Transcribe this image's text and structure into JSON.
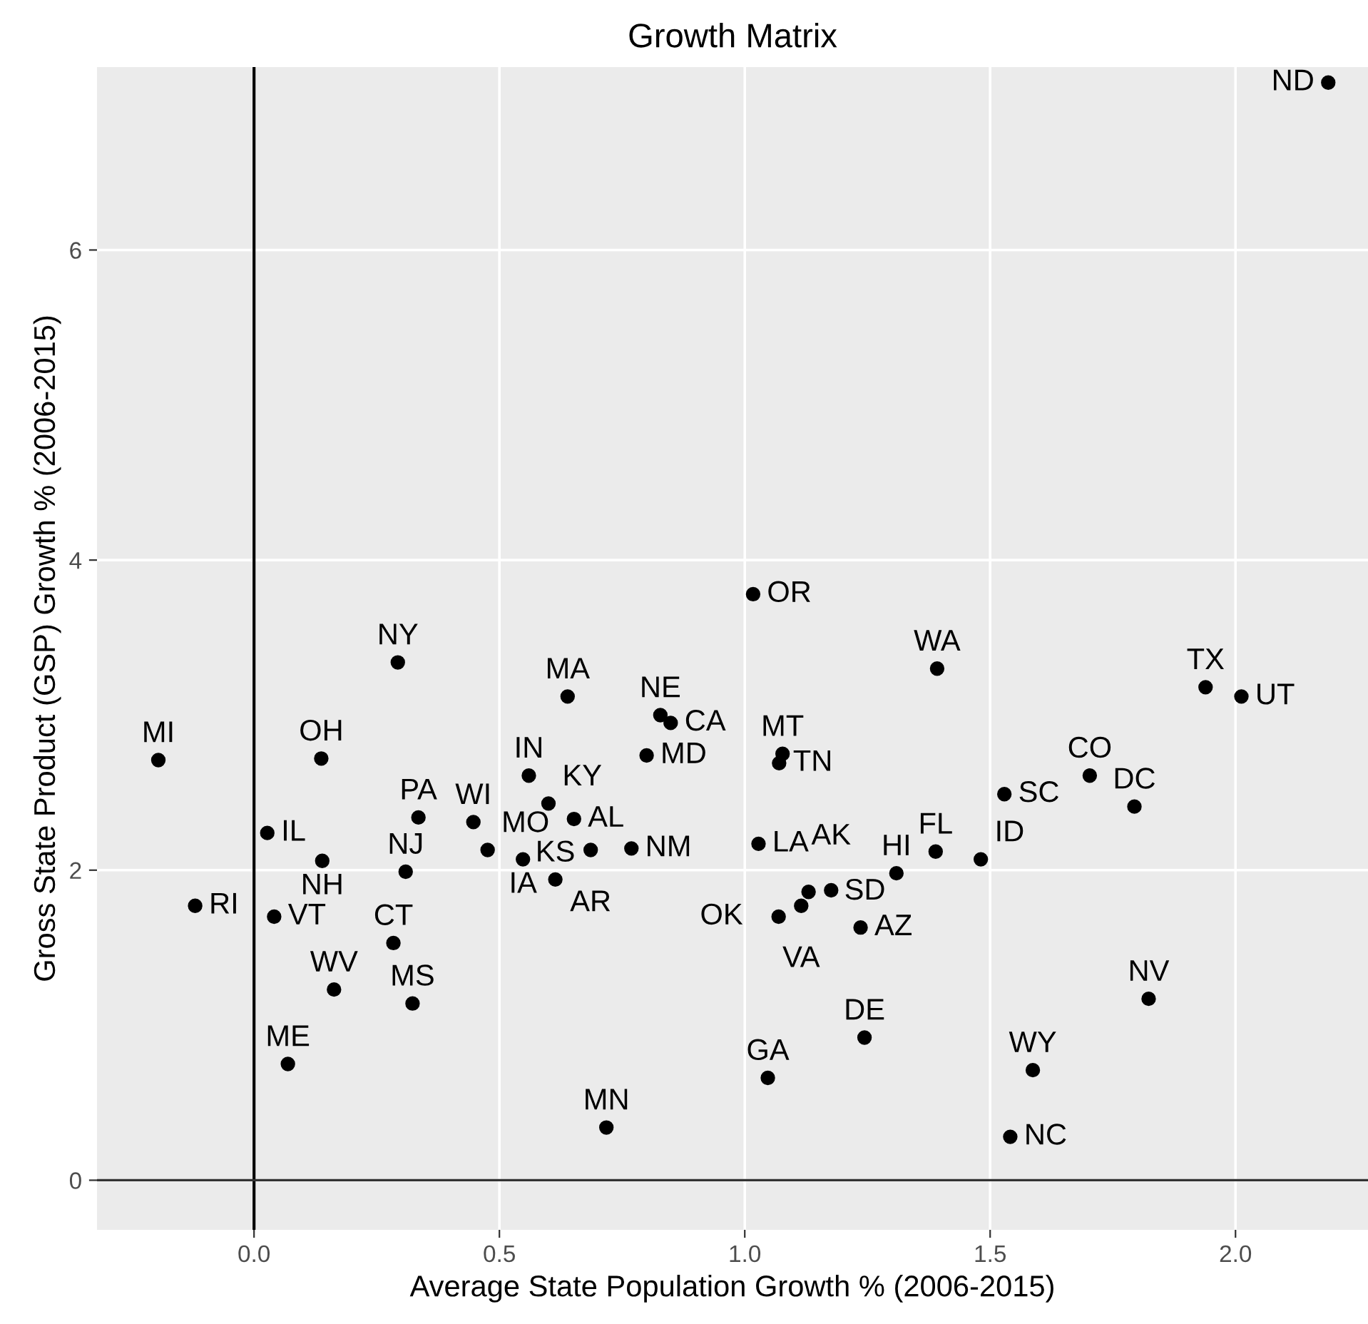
{
  "chart_data": {
    "type": "scatter",
    "title": "Growth Matrix",
    "xlabel": "Average State Population Growth % (2006-2015)",
    "ylabel": "Gross State Product (GSP) Growth % (2006-2015)",
    "xlim": [
      -0.32,
      2.27
    ],
    "ylim": [
      -0.32,
      7.18
    ],
    "xticks": [
      {
        "value": 0,
        "label": "0.0"
      },
      0.5,
      {
        "value": 1,
        "label": "1.0"
      },
      1.5,
      {
        "value": 2,
        "label": "2.0"
      }
    ],
    "yticks": [
      0,
      2,
      4,
      6
    ],
    "grid": true,
    "marker": "circle",
    "ref_lines": [
      {
        "axis": "x",
        "value": 0,
        "color": "#000000"
      },
      {
        "axis": "y",
        "value": 0,
        "color": "#333333"
      }
    ],
    "series": [
      {
        "color": "#000000",
        "x": [
          -0.195,
          -0.12,
          0.027,
          0.041,
          0.069,
          0.137,
          0.139,
          0.163,
          0.335,
          0.309,
          0.284,
          0.323,
          0.293,
          0.639,
          0.828,
          0.849,
          0.8,
          1.077,
          1.07,
          0.56,
          0.6,
          0.652,
          0.447,
          0.476,
          0.548,
          0.614,
          0.686,
          0.769,
          1.028,
          1.13,
          1.115,
          1.176,
          1.069,
          1.236,
          1.309,
          1.389,
          1.481,
          1.017,
          1.392,
          1.529,
          1.703,
          1.794,
          1.939,
          2.012,
          2.189,
          1.823,
          1.587,
          1.541,
          1.244,
          1.047,
          0.718
        ],
        "values": [
          2.71,
          1.77,
          2.24,
          1.7,
          0.75,
          2.72,
          2.06,
          1.23,
          2.34,
          1.99,
          1.53,
          1.14,
          3.34,
          3.12,
          3.0,
          2.95,
          2.74,
          2.75,
          2.69,
          2.61,
          2.43,
          2.33,
          2.31,
          2.13,
          2.07,
          1.94,
          2.13,
          2.14,
          2.17,
          1.86,
          1.77,
          1.87,
          1.7,
          1.63,
          1.98,
          2.12,
          2.07,
          3.78,
          3.3,
          2.49,
          2.61,
          2.41,
          3.18,
          3.12,
          7.08,
          1.17,
          0.71,
          0.28,
          0.92,
          0.66,
          0.34
        ]
      }
    ],
    "annotations": [
      {
        "text": "MI",
        "x": -0.195,
        "y": 2.71
      },
      {
        "text": "RI",
        "x": -0.12,
        "y": 1.77
      },
      {
        "text": "IL",
        "x": 0.027,
        "y": 2.24
      },
      {
        "text": "VT",
        "x": 0.041,
        "y": 1.7
      },
      {
        "text": "ME",
        "x": 0.069,
        "y": 0.75
      },
      {
        "text": "OH",
        "x": 0.137,
        "y": 2.72
      },
      {
        "text": "NH",
        "x": 0.139,
        "y": 2.06
      },
      {
        "text": "WV",
        "x": 0.163,
        "y": 1.23
      },
      {
        "text": "PA",
        "x": 0.335,
        "y": 2.34
      },
      {
        "text": "NJ",
        "x": 0.309,
        "y": 1.99
      },
      {
        "text": "CT",
        "x": 0.284,
        "y": 1.53
      },
      {
        "text": "MS",
        "x": 0.323,
        "y": 1.14
      },
      {
        "text": "NY",
        "x": 0.293,
        "y": 3.34
      },
      {
        "text": "MA",
        "x": 0.639,
        "y": 3.12
      },
      {
        "text": "NE",
        "x": 0.828,
        "y": 3.0
      },
      {
        "text": "CA",
        "x": 0.849,
        "y": 2.95
      },
      {
        "text": "MD",
        "x": 0.8,
        "y": 2.74
      },
      {
        "text": "MT",
        "x": 1.077,
        "y": 2.75
      },
      {
        "text": "TN",
        "x": 1.07,
        "y": 2.69
      },
      {
        "text": "IN",
        "x": 0.56,
        "y": 2.61
      },
      {
        "text": "KY",
        "x": 0.6,
        "y": 2.43
      },
      {
        "text": "AL",
        "x": 0.652,
        "y": 2.33
      },
      {
        "text": "WI",
        "x": 0.447,
        "y": 2.31
      },
      {
        "text": "MO",
        "x": 0.476,
        "y": 2.13
      },
      {
        "text": "IA",
        "x": 0.548,
        "y": 2.07
      },
      {
        "text": "KS",
        "x": 0.614,
        "y": 1.94
      },
      {
        "text": "AR",
        "x": 0.686,
        "y": 2.13
      },
      {
        "text": "NM",
        "x": 0.769,
        "y": 2.14
      },
      {
        "text": "LA",
        "x": 1.028,
        "y": 2.17
      },
      {
        "text": "SD",
        "x": 1.13,
        "y": 1.86
      },
      {
        "text": "VA",
        "x": 1.115,
        "y": 1.77
      },
      {
        "text": "AK",
        "x": 1.176,
        "y": 1.87
      },
      {
        "text": "OK",
        "x": 1.069,
        "y": 1.7
      },
      {
        "text": "AZ",
        "x": 1.236,
        "y": 1.63
      },
      {
        "text": "HI",
        "x": 1.309,
        "y": 1.98
      },
      {
        "text": "FL",
        "x": 1.389,
        "y": 2.12
      },
      {
        "text": "ID",
        "x": 1.481,
        "y": 2.07
      },
      {
        "text": "OR",
        "x": 1.017,
        "y": 3.78
      },
      {
        "text": "WA",
        "x": 1.392,
        "y": 3.3
      },
      {
        "text": "SC",
        "x": 1.529,
        "y": 2.49
      },
      {
        "text": "CO",
        "x": 1.703,
        "y": 2.61
      },
      {
        "text": "DC",
        "x": 1.794,
        "y": 2.41
      },
      {
        "text": "TX",
        "x": 1.939,
        "y": 3.18
      },
      {
        "text": "UT",
        "x": 2.012,
        "y": 3.12
      },
      {
        "text": "ND",
        "x": 2.189,
        "y": 7.08
      },
      {
        "text": "NV",
        "x": 1.823,
        "y": 1.17
      },
      {
        "text": "WY",
        "x": 1.587,
        "y": 0.71
      },
      {
        "text": "NC",
        "x": 1.541,
        "y": 0.28
      },
      {
        "text": "DE",
        "x": 1.244,
        "y": 0.92
      },
      {
        "text": "GA",
        "x": 1.047,
        "y": 0.66
      },
      {
        "text": "MN",
        "x": 0.718,
        "y": 0.34
      }
    ]
  }
}
